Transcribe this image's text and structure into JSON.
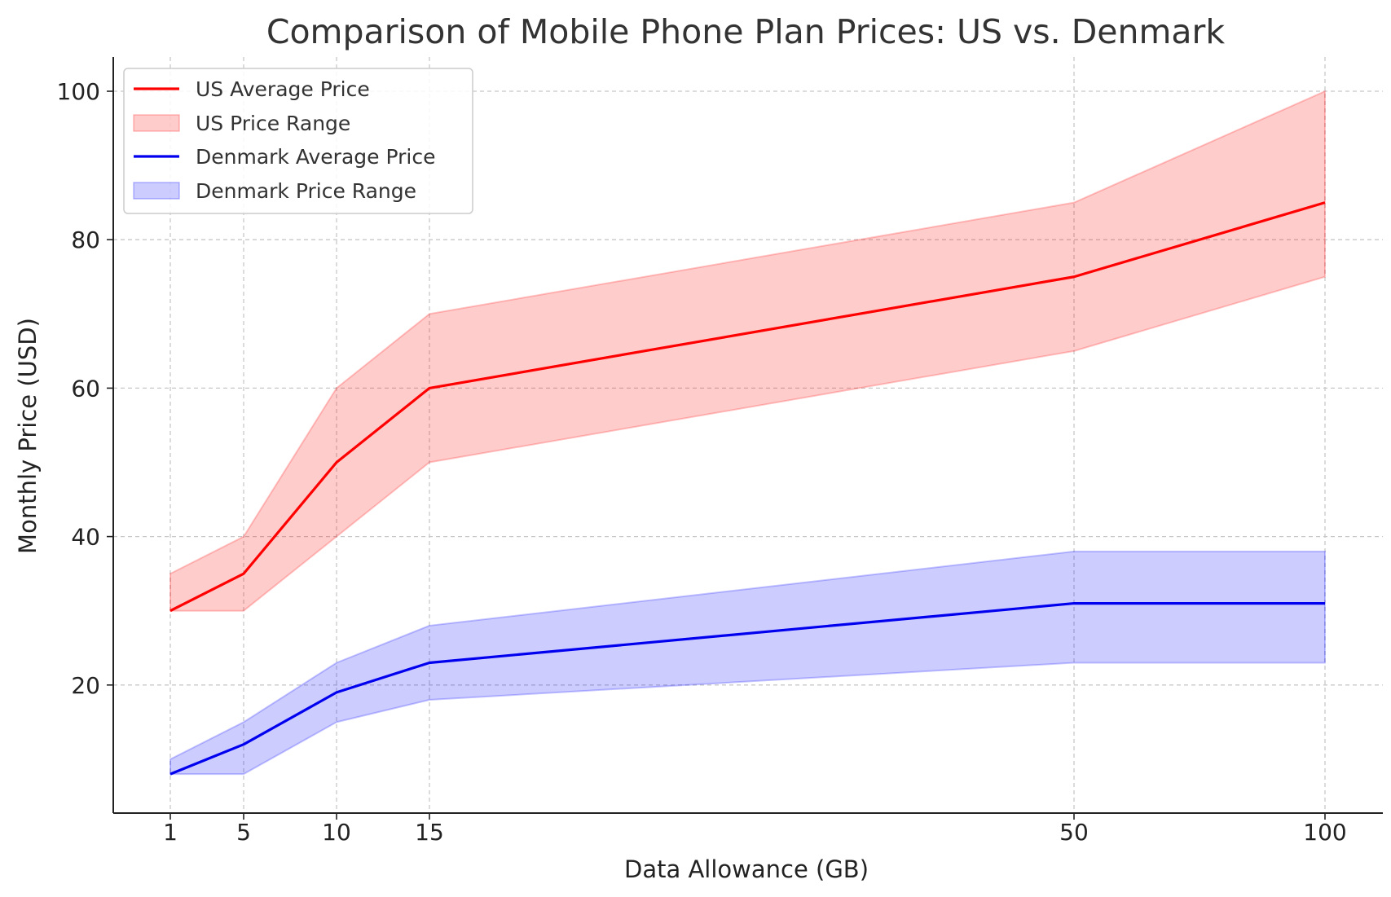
{
  "chart_data": {
    "type": "line",
    "title": "Comparison of Mobile Phone Plan Prices: US vs. Denmark",
    "xlabel": "Data Allowance (GB)",
    "ylabel": "Monthly Price (USD)",
    "x": [
      1,
      5,
      10,
      15,
      50,
      100
    ],
    "x_ticks": [
      1,
      5,
      10,
      15,
      50,
      100
    ],
    "x_scale": "categorical-like (uneven spacing)",
    "y_ticks": [
      20,
      40,
      60,
      80,
      100
    ],
    "ylim": [
      4,
      105
    ],
    "grid": true,
    "legend_position": "top-left",
    "series": [
      {
        "name": "US Average Price",
        "kind": "line",
        "color": "#ff0000",
        "values": [
          30,
          35,
          50,
          60,
          75,
          85
        ]
      },
      {
        "name": "US Price Range",
        "kind": "band",
        "color": "#ff0000",
        "lower": [
          30,
          30,
          40,
          50,
          65,
          75
        ],
        "upper": [
          35,
          40,
          60,
          70,
          85,
          100
        ]
      },
      {
        "name": "Denmark Average Price",
        "kind": "line",
        "color": "#0000ee",
        "values": [
          8,
          12,
          19,
          23,
          31,
          31
        ]
      },
      {
        "name": "Denmark Price Range",
        "kind": "band",
        "color": "#0000ff",
        "lower": [
          8,
          8,
          15,
          18,
          23,
          23
        ],
        "upper": [
          10,
          15,
          23,
          28,
          38,
          38
        ]
      }
    ]
  }
}
